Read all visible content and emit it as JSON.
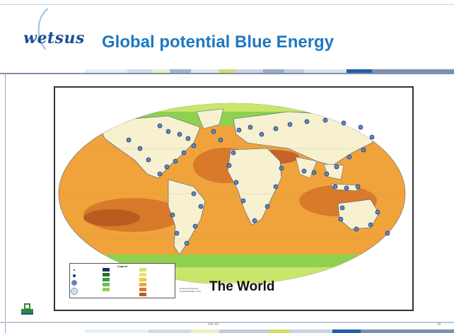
{
  "slide": {
    "logo_text": "wetsus",
    "title": "Global potential Blue Energy",
    "footer_file": "File 43",
    "page_number": "38"
  },
  "map": {
    "caption": "The World",
    "projection_line1": "Robinson Projection",
    "projection_line2": "Central Meridian: 0.00",
    "legend_title": "Legend"
  },
  "colors": {
    "brand_blue": "#1d78c1",
    "logo_blue": "#1c4f95",
    "ocean_orange": "#f0a33a",
    "ocean_dark_orange": "#d97a2a",
    "coast_green": "#8fd14f",
    "land": "#f7f1d0",
    "dot_blue": "#5b87c9"
  }
}
